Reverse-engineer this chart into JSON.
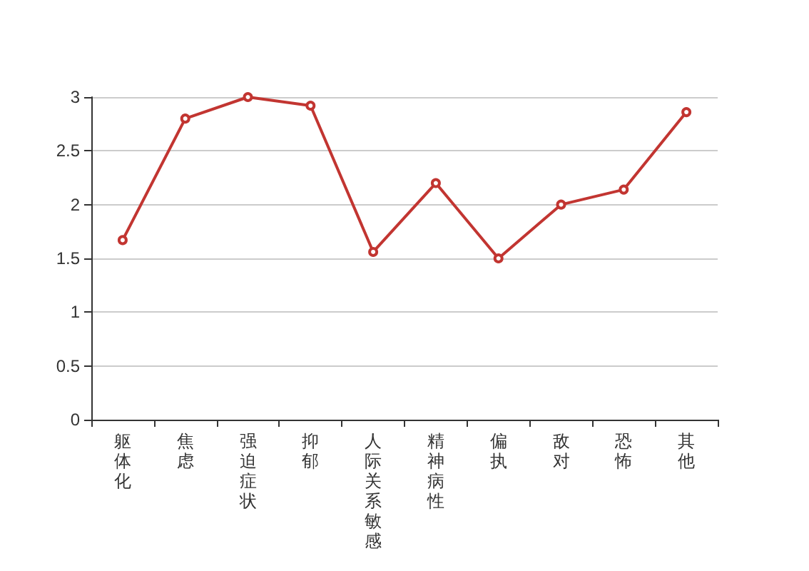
{
  "chart_data": {
    "type": "line",
    "categories": [
      "躯体化",
      "焦虑",
      "强迫症状",
      "抑郁",
      "人际关系敏感",
      "精神病性",
      "偏执",
      "敌对",
      "恐怖",
      "其他"
    ],
    "series": [
      {
        "color": "#c23531",
        "values": [
          1.67,
          2.8,
          3.0,
          2.92,
          1.56,
          2.2,
          1.5,
          2.0,
          2.14,
          2.86
        ]
      }
    ],
    "ylim": [
      0,
      3
    ],
    "yticks": [
      0,
      0.5,
      1,
      1.5,
      2,
      2.5,
      3
    ],
    "grid": "y",
    "marker": "circle",
    "line_style": "solid"
  }
}
